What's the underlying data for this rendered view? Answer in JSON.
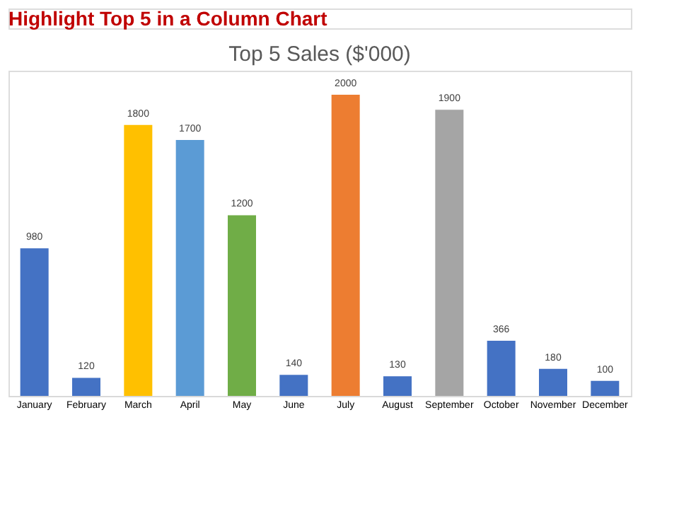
{
  "chart_data": {
    "type": "bar",
    "title": "Top 5 Sales ($'000)",
    "annotations": [
      "Highlight Top 5 in a Column Chart"
    ],
    "categories": [
      "January",
      "February",
      "March",
      "April",
      "May",
      "June",
      "July",
      "August",
      "September",
      "October",
      "November",
      "December"
    ],
    "values": [
      980,
      120,
      1800,
      1700,
      1200,
      140,
      2000,
      130,
      1900,
      366,
      180,
      100
    ],
    "colors": [
      "#4472c4",
      "#4472c4",
      "#ffc000",
      "#5b9bd5",
      "#70ad47",
      "#4472c4",
      "#ed7d31",
      "#4472c4",
      "#a5a5a5",
      "#4472c4",
      "#4472c4",
      "#4472c4"
    ],
    "data_labels": true,
    "grid": false,
    "legend": false
  }
}
